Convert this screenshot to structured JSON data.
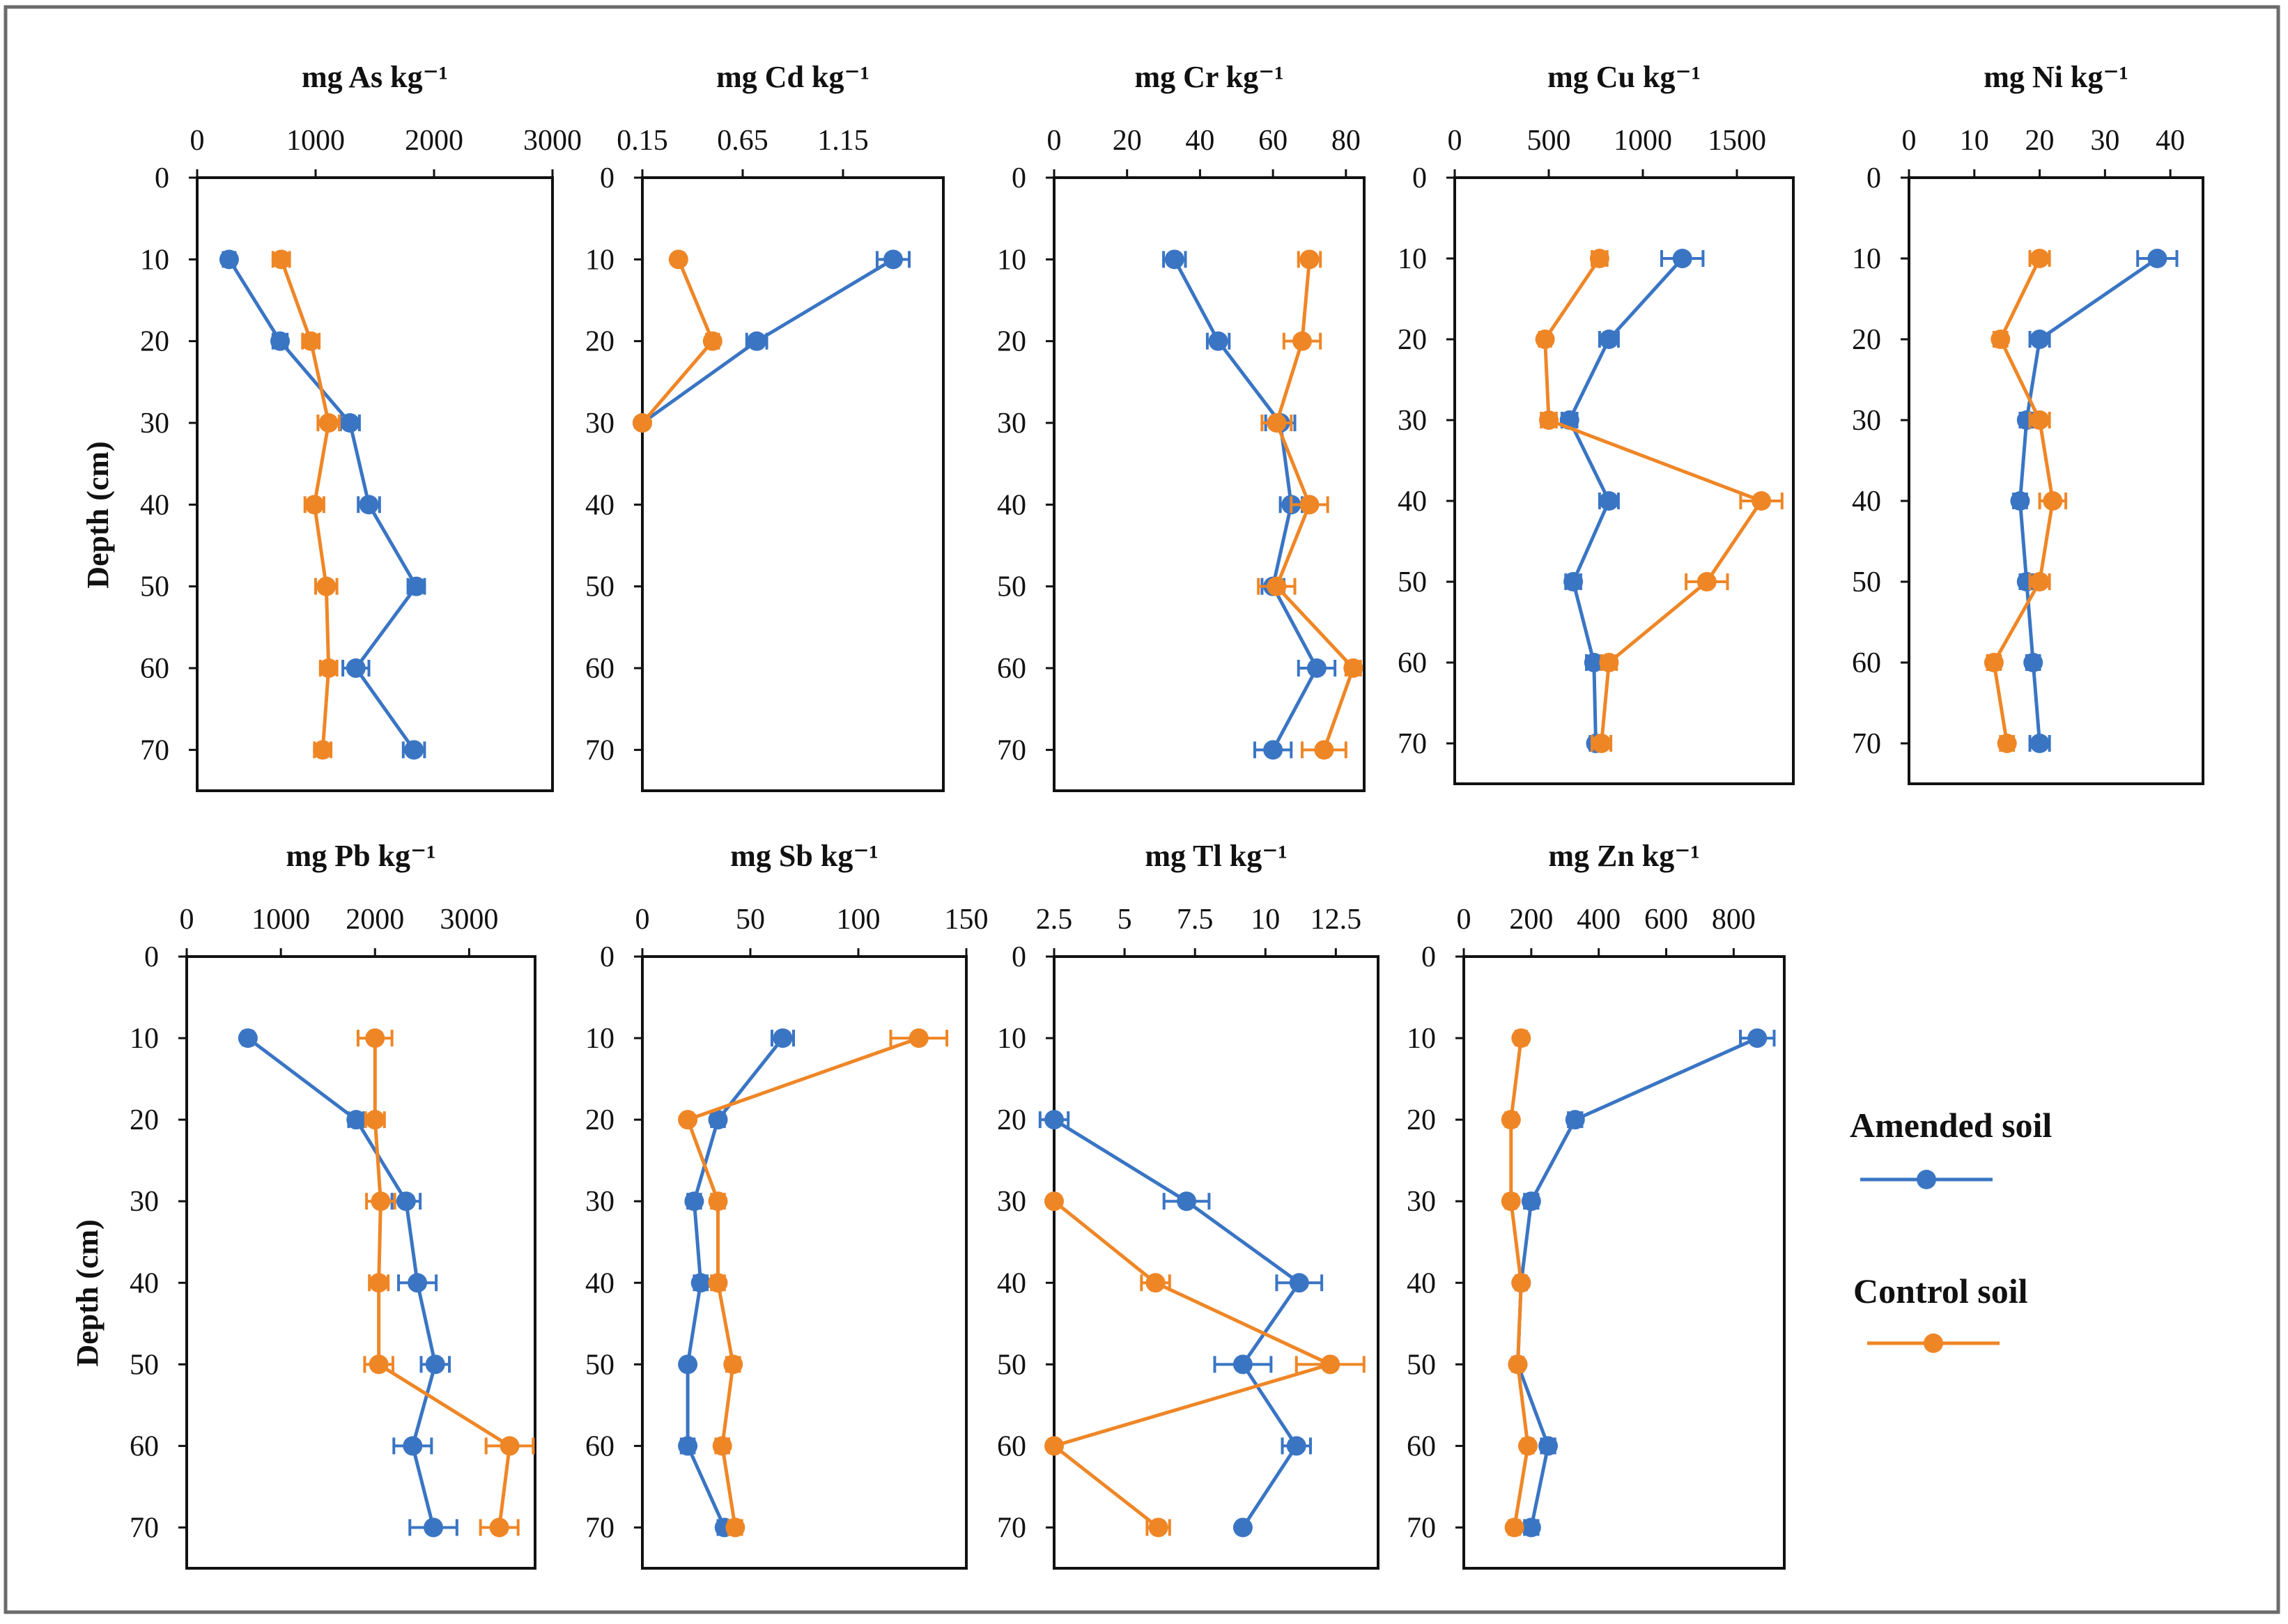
{
  "figure": {
    "legend": [
      {
        "name": "Amended soil",
        "color": "#3a75c4"
      },
      {
        "name": "Control soil",
        "color": "#ef8626"
      }
    ]
  },
  "chart_data": [
    {
      "type": "line",
      "title": "mg As kg⁻¹",
      "xlabel": "",
      "ylabel": "Depth (cm)",
      "xlim": [
        0,
        3000
      ],
      "xticks": [
        0,
        1000,
        2000,
        3000
      ],
      "xtick_labels": [
        "0",
        "1000",
        "2000",
        "3000"
      ],
      "ylim": [
        0,
        75
      ],
      "yticks": [
        0,
        10,
        20,
        30,
        40,
        50,
        60,
        70
      ],
      "depth": [
        10,
        20,
        30,
        40,
        50,
        60,
        70
      ],
      "series": [
        {
          "name": "Amended soil",
          "values": [
            270,
            700,
            1290,
            1450,
            1850,
            1340,
            1830
          ],
          "errors": [
            50,
            60,
            80,
            90,
            70,
            110,
            90
          ]
        },
        {
          "name": "Control soil",
          "values": [
            710,
            960,
            1110,
            990,
            1090,
            1110,
            1060
          ],
          "errors": [
            70,
            70,
            90,
            80,
            90,
            70,
            70
          ]
        }
      ]
    },
    {
      "type": "line",
      "title": "mg Cd kg⁻¹",
      "xlabel": "",
      "ylabel": "",
      "xlim": [
        0.15,
        1.65
      ],
      "xticks": [
        0.15,
        0.65,
        1.15
      ],
      "xtick_labels": [
        "0.15",
        "0.65",
        "1.15"
      ],
      "ylim": [
        0,
        75
      ],
      "yticks": [
        0,
        10,
        20,
        30,
        40,
        50,
        60,
        70
      ],
      "depth": [
        10,
        20,
        30
      ],
      "series": [
        {
          "name": "Amended soil",
          "values": [
            1.4,
            0.72,
            0.15
          ],
          "errors": [
            0.08,
            0.05,
            0.0
          ]
        },
        {
          "name": "Control soil",
          "values": [
            0.33,
            0.5,
            0.15
          ],
          "errors": [
            0.02,
            0.03,
            0.0
          ]
        }
      ]
    },
    {
      "type": "line",
      "title": "mg Cr kg⁻¹",
      "xlabel": "",
      "ylabel": "",
      "xlim": [
        0,
        85
      ],
      "xticks": [
        0,
        20,
        40,
        60,
        80
      ],
      "xtick_labels": [
        "0",
        "20",
        "40",
        "60",
        "80"
      ],
      "ylim": [
        0,
        75
      ],
      "yticks": [
        0,
        10,
        20,
        30,
        40,
        50,
        60,
        70
      ],
      "depth": [
        10,
        20,
        30,
        40,
        50,
        60,
        70
      ],
      "series": [
        {
          "name": "Amended soil",
          "values": [
            33,
            45,
            62,
            65,
            60,
            72,
            60
          ],
          "errors": [
            3,
            3,
            4,
            3,
            3,
            5,
            5
          ]
        },
        {
          "name": "Control soil",
          "values": [
            70,
            68,
            61,
            70,
            61,
            82,
            74
          ],
          "errors": [
            3,
            5,
            4,
            5,
            5,
            2,
            6
          ]
        }
      ]
    },
    {
      "type": "line",
      "title": "mg Cu kg⁻¹",
      "xlabel": "",
      "ylabel": "",
      "xlim": [
        0,
        1800
      ],
      "xticks": [
        0,
        500,
        1000,
        1500
      ],
      "xtick_labels": [
        "0",
        "500",
        "1000",
        "1500"
      ],
      "ylim": [
        0,
        75
      ],
      "yticks": [
        0,
        10,
        20,
        30,
        40,
        50,
        60,
        70
      ],
      "depth": [
        10,
        20,
        30,
        40,
        50,
        60,
        70
      ],
      "series": [
        {
          "name": "Amended soil",
          "values": [
            1210,
            820,
            610,
            820,
            630,
            740,
            750
          ],
          "errors": [
            110,
            50,
            40,
            50,
            40,
            40,
            30
          ]
        },
        {
          "name": "Control soil",
          "values": [
            770,
            480,
            500,
            1630,
            1340,
            820,
            780
          ],
          "errors": [
            40,
            30,
            40,
            110,
            110,
            40,
            50
          ]
        }
      ]
    },
    {
      "type": "line",
      "title": "mg Ni kg⁻¹",
      "xlabel": "",
      "ylabel": "",
      "xlim": [
        0,
        45
      ],
      "xticks": [
        0,
        10,
        20,
        30,
        40
      ],
      "xtick_labels": [
        "0",
        "10",
        "20",
        "30",
        "40"
      ],
      "ylim": [
        0,
        75
      ],
      "yticks": [
        0,
        10,
        20,
        30,
        40,
        50,
        60,
        70
      ],
      "depth": [
        10,
        20,
        30,
        40,
        50,
        60,
        70
      ],
      "series": [
        {
          "name": "Amended soil",
          "values": [
            38,
            20,
            18,
            17,
            18,
            19,
            20
          ],
          "errors": [
            3,
            1.5,
            1,
            1,
            1,
            1,
            1.5
          ]
        },
        {
          "name": "Control soil",
          "values": [
            20,
            14,
            20,
            22,
            20,
            13,
            15
          ],
          "errors": [
            1.5,
            1,
            1.5,
            2,
            1.5,
            1,
            1
          ]
        }
      ]
    },
    {
      "type": "line",
      "title": "mg Pb kg⁻¹",
      "xlabel": "",
      "ylabel": "Depth (cm)",
      "xlim": [
        0,
        3700
      ],
      "xticks": [
        0,
        1000,
        2000,
        3000
      ],
      "xtick_labels": [
        "0",
        "1000",
        "2000",
        "3000"
      ],
      "ylim": [
        0,
        75
      ],
      "yticks": [
        0,
        10,
        20,
        30,
        40,
        50,
        60,
        70
      ],
      "depth": [
        10,
        20,
        30,
        40,
        50,
        60,
        70
      ],
      "series": [
        {
          "name": "Amended soil",
          "values": [
            650,
            1800,
            2330,
            2450,
            2640,
            2400,
            2620
          ],
          "errors": [
            50,
            80,
            150,
            200,
            150,
            200,
            250
          ]
        },
        {
          "name": "Control soil",
          "values": [
            2000,
            2000,
            2060,
            2040,
            2040,
            3430,
            3320
          ],
          "errors": [
            180,
            100,
            150,
            100,
            150,
            250,
            200
          ]
        }
      ]
    },
    {
      "type": "line",
      "title": "mg Sb kg⁻¹",
      "xlabel": "",
      "ylabel": "",
      "xlim": [
        0,
        150
      ],
      "xticks": [
        0,
        50,
        100,
        150
      ],
      "xtick_labels": [
        "0",
        "50",
        "100",
        "150"
      ],
      "ylim": [
        0,
        75
      ],
      "yticks": [
        0,
        10,
        20,
        30,
        40,
        50,
        60,
        70
      ],
      "depth": [
        10,
        20,
        30,
        40,
        50,
        60,
        70
      ],
      "series": [
        {
          "name": "Amended soil",
          "values": [
            65,
            35,
            24,
            27,
            21,
            21,
            38
          ],
          "errors": [
            5,
            3,
            3,
            3,
            2,
            3,
            3
          ]
        },
        {
          "name": "Control soil",
          "values": [
            128,
            21,
            35,
            35,
            42,
            37,
            43
          ],
          "errors": [
            13,
            2,
            3,
            3,
            3,
            3,
            3
          ]
        }
      ]
    },
    {
      "type": "line",
      "title": "mg Tl kg⁻¹",
      "xlabel": "",
      "ylabel": "",
      "xlim": [
        2.5,
        14
      ],
      "xticks": [
        2.5,
        5,
        7.5,
        10,
        12.5
      ],
      "xtick_labels": [
        "2.5",
        "5",
        "7.5",
        "10",
        "12.5"
      ],
      "ylim": [
        0,
        75
      ],
      "yticks": [
        0,
        10,
        20,
        30,
        40,
        50,
        60,
        70
      ],
      "depth": [
        10,
        20,
        30,
        40,
        50,
        60,
        70
      ],
      "series": [
        {
          "name": "Amended soil",
          "values": [
            null,
            2.5,
            7.2,
            11.2,
            9.2,
            11.1,
            9.2
          ],
          "errors": [
            0,
            0.5,
            0.8,
            0.8,
            1,
            0.5,
            0
          ]
        },
        {
          "name": "Control soil",
          "values": [
            null,
            null,
            2.5,
            6.1,
            12.3,
            2.5,
            6.2
          ],
          "errors": [
            0,
            0,
            0,
            0.5,
            1.2,
            0,
            0.4
          ]
        }
      ]
    },
    {
      "type": "line",
      "title": "mg Zn kg⁻¹",
      "xlabel": "",
      "ylabel": "",
      "xlim": [
        0,
        950
      ],
      "xticks": [
        0,
        200,
        400,
        600,
        800
      ],
      "xtick_labels": [
        "0",
        "200",
        "400",
        "600",
        "800"
      ],
      "ylim": [
        0,
        75
      ],
      "yticks": [
        0,
        10,
        20,
        30,
        40,
        50,
        60,
        70
      ],
      "depth": [
        10,
        20,
        30,
        40,
        50,
        60,
        70
      ],
      "series": [
        {
          "name": "Amended soil",
          "values": [
            870,
            330,
            200,
            170,
            160,
            250,
            200
          ],
          "errors": [
            50,
            20,
            20,
            15,
            15,
            20,
            20
          ]
        },
        {
          "name": "Control soil",
          "values": [
            170,
            140,
            140,
            170,
            160,
            190,
            150
          ],
          "errors": [
            15,
            15,
            15,
            15,
            15,
            15,
            15
          ]
        }
      ]
    }
  ]
}
